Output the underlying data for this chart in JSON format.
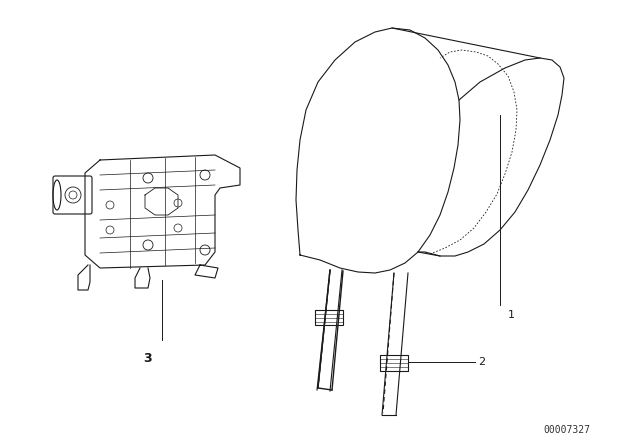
{
  "background_color": "#ffffff",
  "fig_id_text": "00007327",
  "fig_id_fontsize": 7,
  "color": "#1a1a1a"
}
